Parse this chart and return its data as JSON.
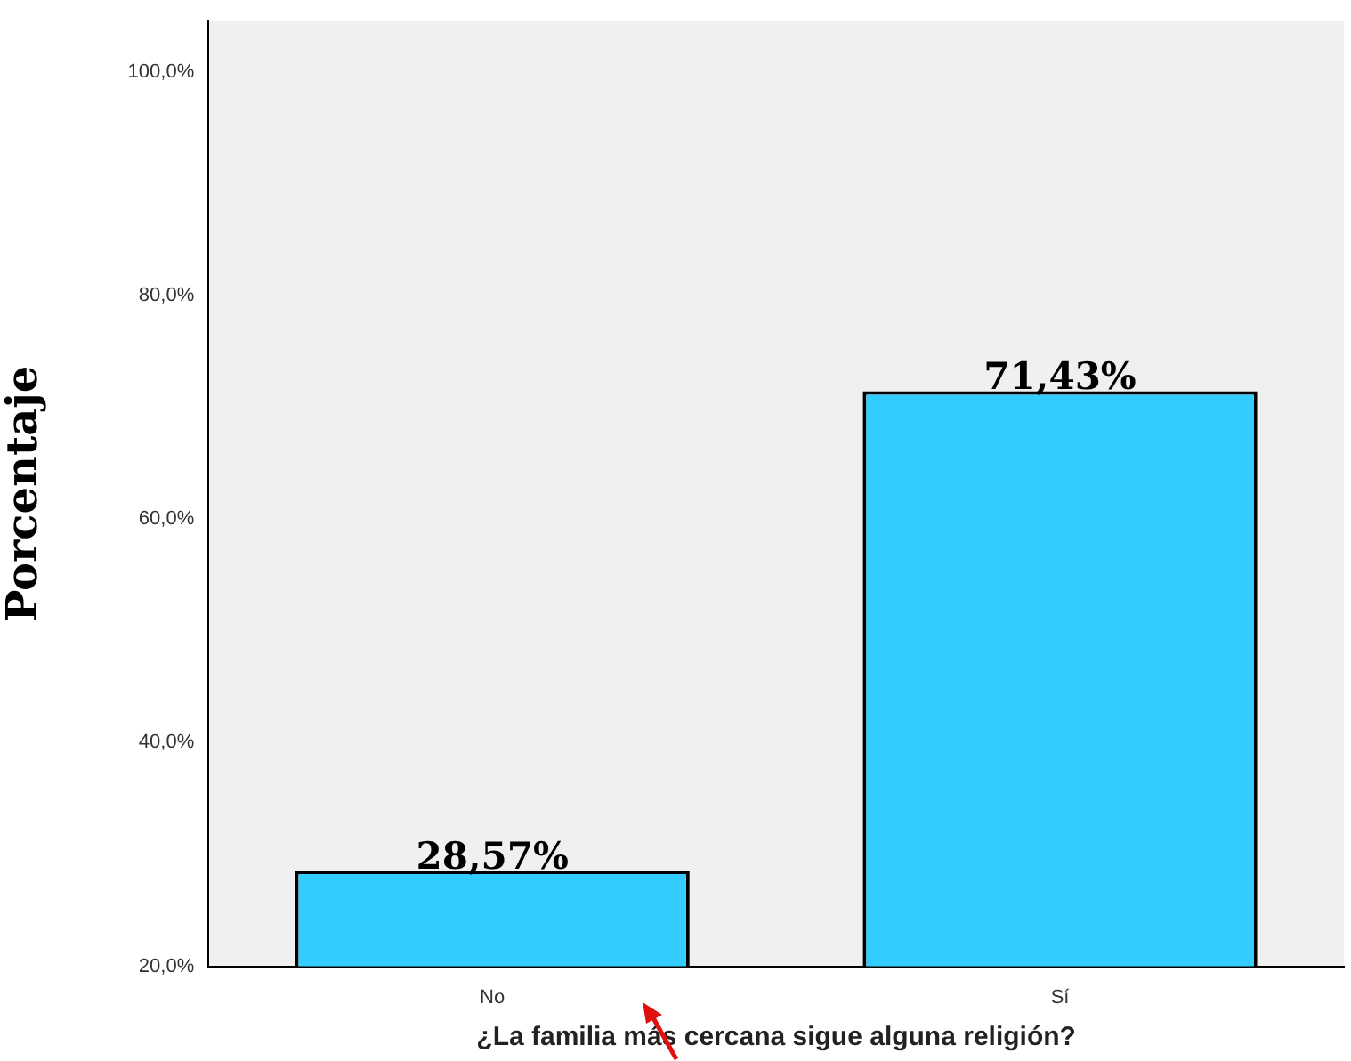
{
  "chart_data": {
    "type": "bar",
    "xlabel": "¿La familia más cercana sigue alguna religión?",
    "ylabel": "Porcentaje",
    "categories": [
      "No",
      "Sí"
    ],
    "values": [
      28.57,
      71.43
    ],
    "color": "#33ccff",
    "value_labels": [
      "28,57%",
      "71,43%"
    ],
    "ylim": [
      20,
      104.5
    ],
    "yticks": [
      {
        "value": 20,
        "label": "20,0%"
      },
      {
        "value": 40,
        "label": "40,0%"
      },
      {
        "value": 60,
        "label": "60,0%"
      },
      {
        "value": 80,
        "label": "80,0%"
      },
      {
        "value": 100,
        "label": "100,0%"
      }
    ],
    "grid": false,
    "legend": false
  }
}
